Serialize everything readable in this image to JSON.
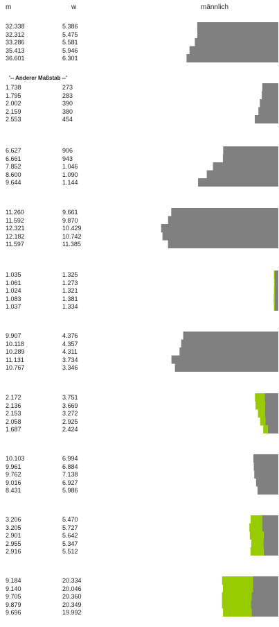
{
  "chart_data": {
    "type": "bar",
    "headers": {
      "m": "m",
      "w": "w",
      "series_title": "männlich"
    },
    "scale_note": "'-- Anderer Maßstab --'",
    "colors": {
      "bar": "#808080",
      "overlap": "#99cc00"
    },
    "groups": [
      {
        "rows": [
          {
            "m": "32.338",
            "w": "5.386"
          },
          {
            "m": "32.312",
            "w": "5.475"
          },
          {
            "m": "33.286",
            "w": "5.581"
          },
          {
            "m": "35.413",
            "w": "5.946"
          },
          {
            "m": "36.601",
            "w": "6.301"
          }
        ]
      },
      {
        "rows": [
          {
            "m": "1.738",
            "w": "273"
          },
          {
            "m": "1.795",
            "w": "283"
          },
          {
            "m": "2.002",
            "w": "390"
          },
          {
            "m": "2.159",
            "w": "380"
          },
          {
            "m": "2.553",
            "w": "454"
          }
        ]
      },
      {
        "rows": [
          {
            "m": "6.627",
            "w": "906"
          },
          {
            "m": "6.661",
            "w": "943"
          },
          {
            "m": "7.852",
            "w": "1.046"
          },
          {
            "m": "8.600",
            "w": "1.090"
          },
          {
            "m": "9.644",
            "w": "1.144"
          }
        ]
      },
      {
        "rows": [
          {
            "m": "11.260",
            "w": "9.661"
          },
          {
            "m": "11.592",
            "w": "9.870"
          },
          {
            "m": "12.321",
            "w": "10.429"
          },
          {
            "m": "12.182",
            "w": "10.742"
          },
          {
            "m": "11.597",
            "w": "11.385"
          }
        ]
      },
      {
        "rows": [
          {
            "m": "1.035",
            "w": "1.325"
          },
          {
            "m": "1.061",
            "w": "1.273"
          },
          {
            "m": "1.024",
            "w": "1.321"
          },
          {
            "m": "1.083",
            "w": "1.381"
          },
          {
            "m": "1.037",
            "w": "1.334"
          }
        ]
      },
      {
        "rows": [
          {
            "m": "9.907",
            "w": "4.376"
          },
          {
            "m": "10.118",
            "w": "4.357"
          },
          {
            "m": "10.289",
            "w": "4.311"
          },
          {
            "m": "11.131",
            "w": "3.734"
          },
          {
            "m": "10.767",
            "w": "3.346"
          }
        ]
      },
      {
        "rows": [
          {
            "m": "2.172",
            "w": "3.751"
          },
          {
            "m": "2.136",
            "w": "3.669"
          },
          {
            "m": "2.153",
            "w": "3.272"
          },
          {
            "m": "2.058",
            "w": "2.925"
          },
          {
            "m": "1.687",
            "w": "2.424"
          }
        ]
      },
      {
        "rows": [
          {
            "m": "10.103",
            "w": "6.994"
          },
          {
            "m": "9.961",
            "w": "6.884"
          },
          {
            "m": "9.762",
            "w": "7.138"
          },
          {
            "m": "9.016",
            "w": "6.927"
          },
          {
            "m": "8.431",
            "w": "5.986"
          }
        ]
      },
      {
        "rows": [
          {
            "m": "3.206",
            "w": "5.470"
          },
          {
            "m": "3.205",
            "w": "5.727"
          },
          {
            "m": "2.901",
            "w": "5.642"
          },
          {
            "m": "2.955",
            "w": "5.347"
          },
          {
            "m": "2.916",
            "w": "5.512"
          }
        ]
      },
      {
        "rows": [
          {
            "m": "9.184",
            "w": "20.334"
          },
          {
            "m": "9.140",
            "w": "20.046"
          },
          {
            "m": "9.705",
            "w": "20.360"
          },
          {
            "m": "9.879",
            "w": "20.349"
          },
          {
            "m": "9.696",
            "w": "19.992"
          }
        ]
      }
    ]
  }
}
